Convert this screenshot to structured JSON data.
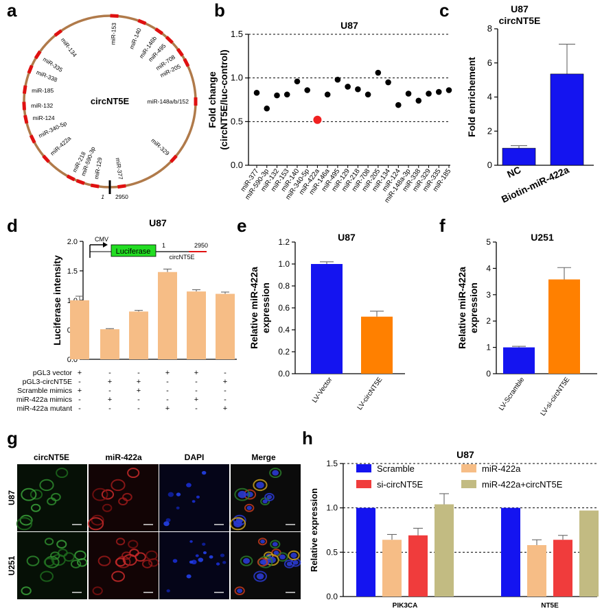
{
  "panels": {
    "a": "a",
    "b": "b",
    "c": "c",
    "d": "d",
    "e": "e",
    "f": "f",
    "g": "g",
    "h": "h"
  },
  "colors": {
    "blue": "#1414f0",
    "orange": "#ff8000",
    "peach": "#f6bd86",
    "red": "#f03c3c",
    "olive": "#c2bb82",
    "ring": "#b07a4a",
    "mark": "#e01010"
  },
  "circ": {
    "center_label": "circNT5E",
    "start_label": "1",
    "end_label": "2950",
    "sites": [
      {
        "label": "miR-153",
        "angle": 3
      },
      {
        "label": "miR-140",
        "angle": 22
      },
      {
        "label": "miR-146b",
        "angle": 35
      },
      {
        "label": "miR-495",
        "angle": 44
      },
      {
        "label": "miR-708",
        "angle": 55
      },
      {
        "label": "miR-205",
        "angle": 63
      },
      {
        "label": "miR-148a/b/152",
        "angle": 90
      },
      {
        "label": "miR-329",
        "angle": 132
      },
      {
        "label": "miR-377",
        "angle": 172
      },
      {
        "label": "miR-129",
        "angle": 190
      },
      {
        "label": "miR-590-3p",
        "angle": 200
      },
      {
        "label": "miR-218",
        "angle": 207
      },
      {
        "label": "miR-422a",
        "angle": 228
      },
      {
        "label": "miR-340-5p",
        "angle": 244
      },
      {
        "label": "miR-124",
        "angle": 258
      },
      {
        "label": "miR-132",
        "angle": 267
      },
      {
        "label": "miR-185",
        "angle": 278
      },
      {
        "label": "miR-338",
        "angle": 292
      },
      {
        "label": "miR-335",
        "angle": 303
      },
      {
        "label": "miR-134",
        "angle": 323
      }
    ]
  },
  "chart_data": [
    {
      "panel": "b",
      "type": "scatter",
      "title": "U87",
      "ylabel": "Fold change\n(circNT5E/luc-control)",
      "ylim": [
        0,
        1.5
      ],
      "yticks": [
        0.0,
        0.5,
        1.0,
        1.5
      ],
      "grid": true,
      "categories": [
        "miR-377",
        "miR-590-3p",
        "miR-132",
        "miR-153",
        "miR-140",
        "miR-340-5p",
        "miR-422a",
        "miR-146a",
        "miR-495",
        "miR-129",
        "miR-218",
        "miR-708",
        "miR-205",
        "miR-134",
        "miR-124",
        "miR-148a-3p",
        "miR-338",
        "miR-329",
        "miR-335",
        "miR-185"
      ],
      "values": [
        0.83,
        0.65,
        0.8,
        0.81,
        0.96,
        0.86,
        0.52,
        0.81,
        0.98,
        0.9,
        0.87,
        0.81,
        1.06,
        0.95,
        0.69,
        0.82,
        0.74,
        0.82,
        0.84,
        0.86
      ],
      "highlight": "miR-422a"
    },
    {
      "panel": "c",
      "type": "bar",
      "title": "U87\ncircNT5E",
      "ylabel": "Fold enrichement",
      "ylim": [
        0,
        8
      ],
      "yticks": [
        0,
        2,
        4,
        6,
        8
      ],
      "categories": [
        "NC",
        "Biotin-miR-422a"
      ],
      "values": [
        1.0,
        5.35
      ],
      "errors": [
        0.15,
        1.75
      ]
    },
    {
      "panel": "d",
      "type": "bar",
      "title": "U87",
      "ylabel": "Luciferase intensity",
      "ylim": [
        0,
        2.0
      ],
      "yticks": [
        0.0,
        0.5,
        1.0,
        1.5,
        2.0
      ],
      "values": [
        1.0,
        0.51,
        0.81,
        1.48,
        1.15,
        1.11
      ],
      "errors": [
        0.07,
        0.01,
        0.02,
        0.05,
        0.03,
        0.03
      ],
      "construct": {
        "promoter": "CMV",
        "gene": "Luciferase",
        "start": "1",
        "end": "2950",
        "insert": "circNT5E"
      },
      "conditions": [
        {
          "label": "pGL3 vector",
          "signs": [
            "+",
            "-",
            "-",
            "+",
            "+",
            "-"
          ]
        },
        {
          "label": "pGL3-circNT5E",
          "signs": [
            "-",
            "+",
            "+",
            "-",
            "-",
            "+"
          ]
        },
        {
          "label": "Scramble mimics",
          "signs": [
            "+",
            "-",
            "+",
            "-",
            "-",
            "-"
          ]
        },
        {
          "label": "miR-422a mimics",
          "signs": [
            "-",
            "+",
            "-",
            "-",
            "+",
            "-"
          ]
        },
        {
          "label": "miR-422a mutant",
          "signs": [
            "-",
            "-",
            "-",
            "+",
            "-",
            "+"
          ]
        }
      ]
    },
    {
      "panel": "e",
      "type": "bar",
      "title": "U87",
      "ylabel": "Relative miR-422a\nexpression",
      "ylim": [
        0,
        1.2
      ],
      "yticks": [
        0.0,
        0.2,
        0.4,
        0.6,
        0.8,
        1.0,
        1.2
      ],
      "categories": [
        "LV-Vector",
        "LV-circNT5E"
      ],
      "values": [
        1.0,
        0.52
      ],
      "errors": [
        0.02,
        0.05
      ]
    },
    {
      "panel": "f",
      "type": "bar",
      "title": "U251",
      "ylabel": "Relative miR-422a\nexpression",
      "ylim": [
        0,
        5
      ],
      "yticks": [
        0,
        1,
        2,
        3,
        4,
        5
      ],
      "categories": [
        "LV-Scramble",
        "LV-si-circNT5E"
      ],
      "values": [
        1.0,
        3.58
      ],
      "errors": [
        0.04,
        0.45
      ]
    },
    {
      "panel": "h",
      "type": "bar",
      "title": "U87",
      "ylabel": "Relative expression",
      "ylim": [
        0,
        1.5
      ],
      "yticks": [
        0.0,
        0.5,
        1.0,
        1.5
      ],
      "grid": true,
      "categories": [
        "PIK3CA",
        "NT5E"
      ],
      "series": [
        {
          "name": "Scramble",
          "values": [
            1.0,
            1.0
          ],
          "errors": [
            0,
            0
          ]
        },
        {
          "name": "miR-422a",
          "values": [
            0.64,
            0.58
          ],
          "errors": [
            0.06,
            0.06
          ]
        },
        {
          "name": "si-circNT5E",
          "values": [
            0.69,
            0.64
          ],
          "errors": [
            0.08,
            0.05
          ]
        },
        {
          "name": "miR-422a+circNT5E",
          "values": [
            1.04,
            0.97
          ],
          "errors": [
            0.12,
            0.0
          ]
        }
      ]
    }
  ],
  "micro": {
    "columns": [
      "circNT5E",
      "miR-422a",
      "DAPI",
      "Merge"
    ],
    "rows": [
      "U87",
      "U251"
    ]
  }
}
